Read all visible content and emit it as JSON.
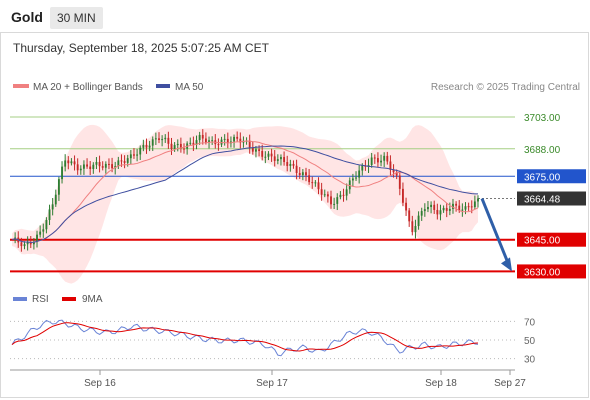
{
  "header": {
    "title": "Gold",
    "timeframe": "30 MIN",
    "datetime": "Thursday, September 18, 2025 5:07:25 AM CET"
  },
  "legend": {
    "ma20": "MA 20 + Bollinger Bands",
    "ma50": "MA 50",
    "source": "Research © 2025 Trading Central"
  },
  "rsi_legend": {
    "rsi": "RSI",
    "ma": "9MA"
  },
  "colors": {
    "up": "#2e7d32",
    "down": "#c62828",
    "ma20": "#f08080",
    "ma50": "#3f4fa0",
    "band": "#ffdede",
    "resistance": "#a5cf84",
    "support": "#e00000",
    "pivot": "#2255cc",
    "arrow": "#2f5fa8"
  },
  "chart_data": [
    {
      "type": "candlestick",
      "x_ticks": [
        "Sep 16",
        "Sep 17",
        "Sep 18",
        "Sep 27"
      ],
      "ylim": [
        3625,
        3712
      ],
      "levels": [
        {
          "label": "3703.00",
          "value": 3703,
          "kind": "resistance"
        },
        {
          "label": "3688.00",
          "value": 3688,
          "kind": "resistance"
        },
        {
          "label": "3675.00",
          "value": 3675,
          "kind": "pivot"
        },
        {
          "label": "3664.48",
          "value": 3664.48,
          "kind": "last"
        },
        {
          "label": "3645.00",
          "value": 3645,
          "kind": "support"
        },
        {
          "label": "3630.00",
          "value": 3630,
          "kind": "support"
        }
      ],
      "close_anchors": [
        3645,
        3641,
        3648,
        3660,
        3683,
        3680,
        3679,
        3680,
        3682,
        3683,
        3690,
        3694,
        3688,
        3690,
        3693,
        3690,
        3693,
        3692,
        3688,
        3686,
        3682,
        3680,
        3676,
        3668,
        3663,
        3668,
        3676,
        3684,
        3683,
        3672,
        3650,
        3660,
        3658,
        3662,
        3658,
        3664
      ],
      "projection": {
        "from": 3664.48,
        "to": 3630
      }
    },
    {
      "type": "line",
      "name": "RSI",
      "y_ticks": [
        70,
        50,
        30
      ],
      "ylim": [
        20,
        80
      ],
      "rsi_anchors": [
        45,
        55,
        65,
        70,
        68,
        63,
        60,
        58,
        60,
        65,
        62,
        60,
        58,
        55,
        52,
        50,
        49,
        50,
        48,
        45,
        35,
        40,
        42,
        37,
        45,
        55,
        60,
        58,
        50,
        38,
        42,
        45,
        42,
        45,
        47,
        48
      ]
    }
  ]
}
